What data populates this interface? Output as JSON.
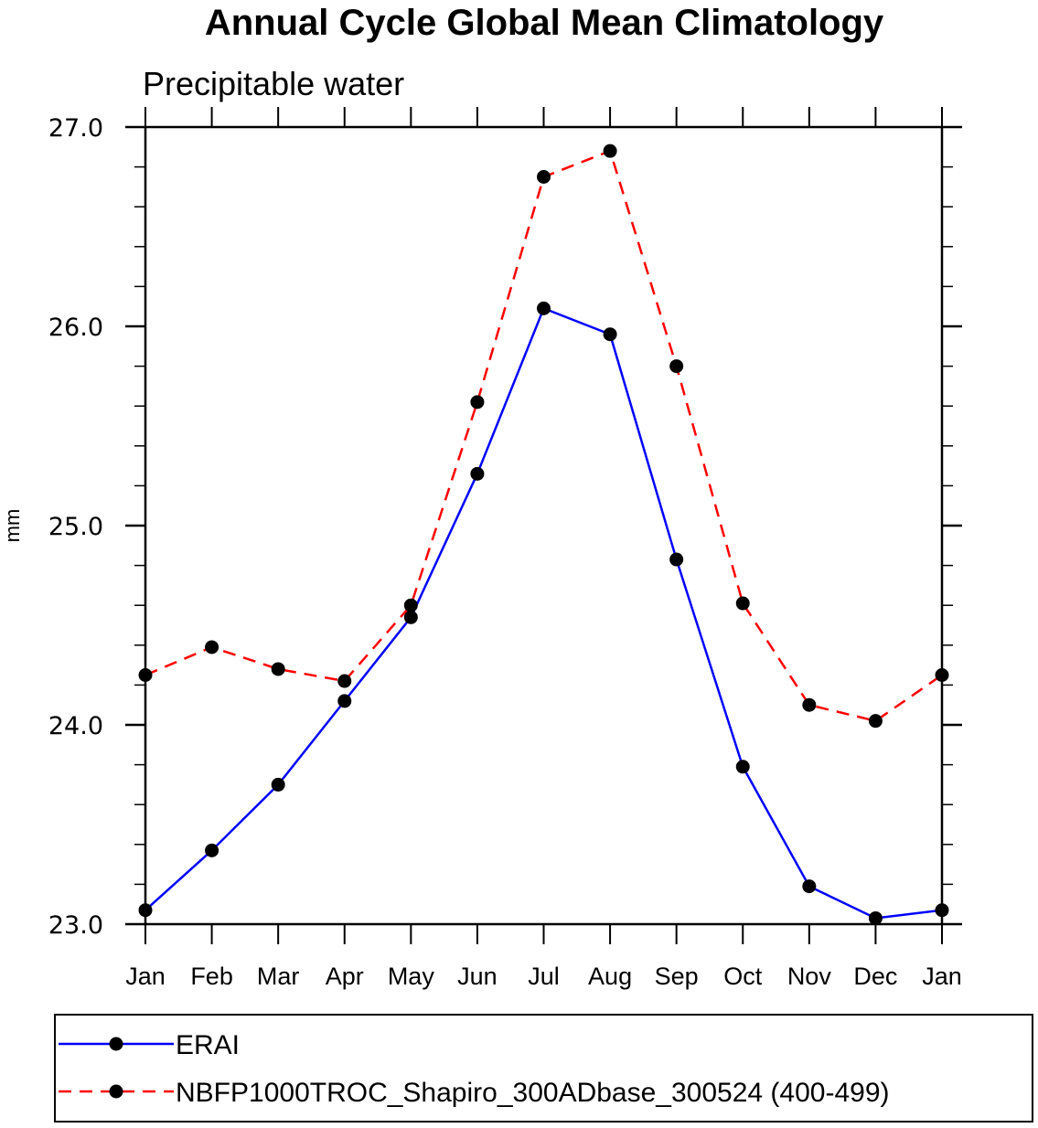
{
  "chart_data": {
    "type": "line",
    "title": "Annual Cycle Global Mean Climatology",
    "subtitle": "Precipitable water",
    "xlabel": "",
    "ylabel": "mm",
    "categories": [
      "Jan",
      "Feb",
      "Mar",
      "Apr",
      "May",
      "Jun",
      "Jul",
      "Aug",
      "Sep",
      "Oct",
      "Nov",
      "Dec",
      "Jan"
    ],
    "ylim": [
      23.0,
      27.0
    ],
    "yticks_major": [
      23.0,
      24.0,
      25.0,
      26.0,
      27.0
    ],
    "ytick_labels": [
      "23.0",
      "24.0",
      "25.0",
      "26.0",
      "27.0"
    ],
    "yminor_step": 0.2,
    "grid": false,
    "legend_position": "bottom",
    "series": [
      {
        "name": "ERAI",
        "color": "#0000ff",
        "style": "solid",
        "marker": "filled-circle",
        "values": [
          23.07,
          23.37,
          23.7,
          24.12,
          24.54,
          25.26,
          26.09,
          25.96,
          24.83,
          23.79,
          23.19,
          23.03,
          23.07
        ]
      },
      {
        "name": "NBFP1000TROC_Shapiro_300ADbase_300524 (400-499)",
        "color": "#ff0000",
        "style": "dashed",
        "marker": "filled-circle",
        "values": [
          24.25,
          24.39,
          24.28,
          24.22,
          24.6,
          25.62,
          26.75,
          26.88,
          25.8,
          24.61,
          24.1,
          24.02,
          24.25
        ]
      }
    ]
  }
}
